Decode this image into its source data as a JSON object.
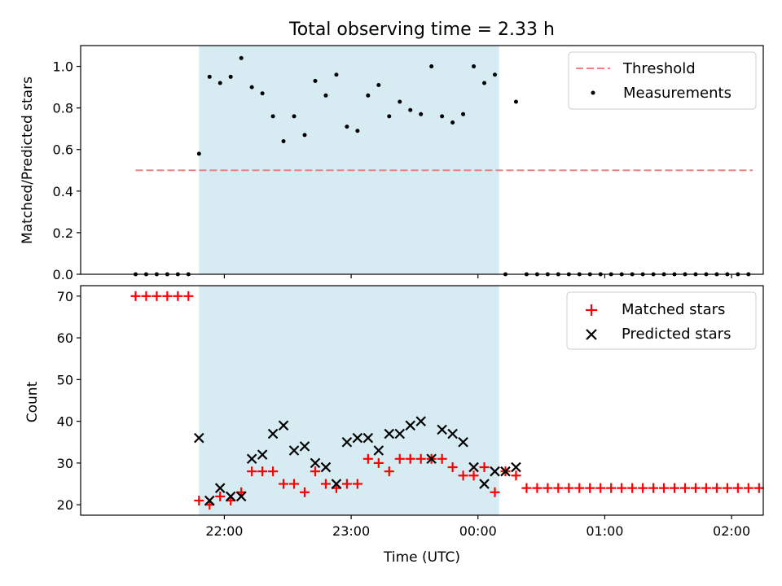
{
  "title": "Total observing time = 2.33 h",
  "colors": {
    "shade": "#add8e6",
    "threshold": "#f08080",
    "matched": "#ff0000",
    "predicted": "#000000",
    "measurement": "#000000"
  },
  "chart_data": [
    {
      "type": "scatter",
      "title": "Total observing time = 2.33 h",
      "xlabel": "",
      "ylabel": "Matched/Predicted stars",
      "xlim": [
        -68,
        255
      ],
      "ylim": [
        0,
        1.1
      ],
      "yticks": [
        0.0,
        0.2,
        0.4,
        0.6,
        0.8,
        1.0
      ],
      "ytick_labels": [
        "0.0",
        "0.2",
        "0.4",
        "0.6",
        "0.8",
        "1.0"
      ],
      "xticks": [
        0,
        60,
        120,
        180,
        240
      ],
      "grid": false,
      "legend_position": "top-right",
      "shaded_span": [
        -12,
        130
      ],
      "threshold": {
        "name": "Threshold",
        "value": 0.5,
        "x_range": [
          -42,
          250
        ]
      },
      "series": [
        {
          "name": "Measurements",
          "marker": "dot",
          "x": [
            -42,
            -37,
            -32,
            -27,
            -22,
            -17,
            -12,
            -7,
            -2,
            3,
            8,
            13,
            18,
            23,
            28,
            33,
            38,
            43,
            48,
            53,
            58,
            63,
            68,
            73,
            78,
            83,
            88,
            93,
            98,
            103,
            108,
            113,
            118,
            123,
            128,
            133,
            138,
            143,
            148,
            153,
            158,
            163,
            168,
            173,
            178,
            183,
            188,
            193,
            198,
            203,
            208,
            213,
            218,
            223,
            228,
            233,
            238,
            243,
            248
          ],
          "y": [
            0,
            0,
            0,
            0,
            0,
            0,
            0.58,
            0.95,
            0.92,
            0.95,
            1.04,
            0.9,
            0.87,
            0.76,
            0.64,
            0.76,
            0.67,
            0.93,
            0.86,
            0.96,
            0.71,
            0.69,
            0.86,
            0.91,
            0.76,
            0.83,
            0.79,
            0.77,
            1.0,
            0.76,
            0.73,
            0.77,
            1.0,
            0.92,
            0.96,
            0,
            0.83,
            0,
            0,
            0,
            0,
            0,
            0,
            0,
            0,
            0,
            0,
            0,
            0,
            0,
            0,
            0,
            0,
            0,
            0,
            0,
            0,
            0,
            0
          ]
        }
      ]
    },
    {
      "type": "scatter",
      "xlabel": "Time (UTC)",
      "ylabel": "Count",
      "xlim": [
        -68,
        255
      ],
      "ylim": [
        17.5,
        72.5
      ],
      "yticks": [
        20,
        30,
        40,
        50,
        60,
        70
      ],
      "ytick_labels": [
        "20",
        "30",
        "40",
        "50",
        "60",
        "70"
      ],
      "xticks": [
        0,
        60,
        120,
        180,
        240
      ],
      "xtick_labels": [
        "22:00",
        "23:00",
        "00:00",
        "01:00",
        "02:00"
      ],
      "grid": false,
      "legend_position": "top-right",
      "shaded_span": [
        -12,
        130
      ],
      "series": [
        {
          "name": "Matched stars",
          "marker": "plus",
          "x": [
            -42,
            -37,
            -32,
            -27,
            -22,
            -17,
            -12,
            -7,
            -2,
            3,
            8,
            13,
            18,
            23,
            28,
            33,
            38,
            43,
            48,
            53,
            58,
            63,
            68,
            73,
            78,
            83,
            88,
            93,
            98,
            103,
            108,
            113,
            118,
            123,
            128,
            133,
            138,
            143,
            148,
            153,
            158,
            163,
            168,
            173,
            178,
            183,
            188,
            193,
            198,
            203,
            208,
            213,
            218,
            223,
            228,
            233,
            238,
            243,
            248,
            253
          ],
          "y": [
            70,
            70,
            70,
            70,
            70,
            70,
            21,
            20,
            22,
            21,
            23,
            28,
            28,
            28,
            25,
            25,
            23,
            28,
            25,
            24,
            25,
            25,
            31,
            30,
            28,
            31,
            31,
            31,
            31,
            31,
            29,
            27,
            27,
            29,
            23,
            28,
            27,
            24,
            24,
            24,
            24,
            24,
            24,
            24,
            24,
            24,
            24,
            24,
            24,
            24,
            24,
            24,
            24,
            24,
            24,
            24,
            24,
            24,
            24,
            24
          ]
        },
        {
          "name": "Predicted stars",
          "marker": "x",
          "x": [
            -12,
            -7,
            -2,
            3,
            8,
            13,
            18,
            23,
            28,
            33,
            38,
            43,
            48,
            53,
            58,
            63,
            68,
            73,
            78,
            83,
            88,
            93,
            98,
            103,
            108,
            113,
            118,
            123,
            128,
            133,
            138
          ],
          "y": [
            36,
            21,
            24,
            22,
            22,
            31,
            32,
            37,
            39,
            33,
            34,
            30,
            29,
            25,
            35,
            36,
            36,
            33,
            37,
            37,
            39,
            40,
            31,
            38,
            37,
            35,
            29,
            25,
            28,
            28,
            29
          ]
        }
      ]
    }
  ]
}
